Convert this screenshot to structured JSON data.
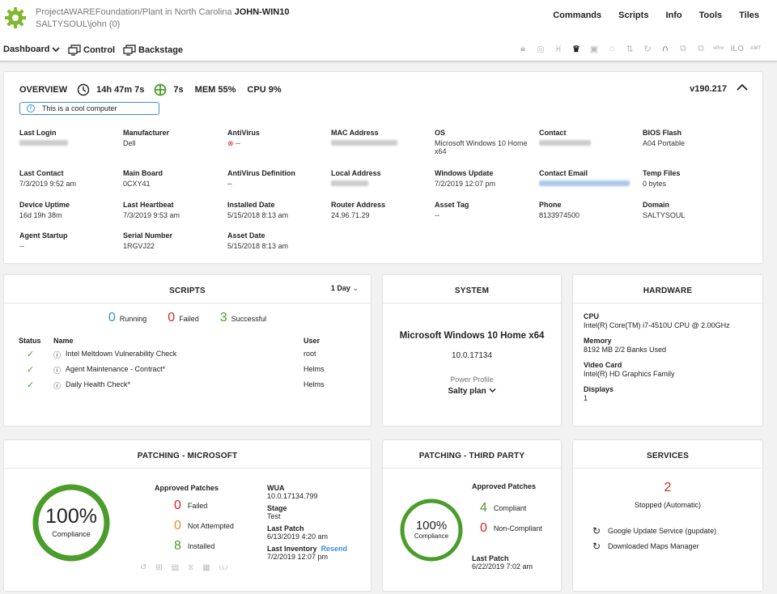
{
  "header": {
    "project": "ProjectAWAREFoundation/Plant in North Carolina",
    "computer": "JOHN-WIN10",
    "user": "SALTYSOUL\\john (0)"
  },
  "menu": [
    "Commands",
    "Scripts",
    "Info",
    "Tools",
    "Tiles"
  ],
  "toolbar": {
    "dashboard": "Dashboard",
    "control": "Control",
    "backstage": "Backstage",
    "vpro": "vPro",
    "ilo": "iLO",
    "amt": "AMT"
  },
  "overview": {
    "title": "OVERVIEW",
    "uptime": "14h 47m 7s",
    "ping": "7s",
    "mem": "MEM 55%",
    "cpu": "CPU 9%",
    "version": "v190.217",
    "note": "This is a cool computer",
    "fields": {
      "last_login": {
        "label": "Last Login"
      },
      "manufacturer": {
        "label": "Manufacturer",
        "value": "Dell"
      },
      "antivirus": {
        "label": "AntiVirus",
        "value": "--"
      },
      "mac": {
        "label": "MAC Address"
      },
      "os": {
        "label": "OS",
        "value": "Microsoft Windows 10 Home x64"
      },
      "contact": {
        "label": "Contact"
      },
      "bios": {
        "label": "BIOS Flash",
        "value": "A04 Portable"
      },
      "last_contact": {
        "label": "Last Contact",
        "value": "7/3/2019 9:52 am"
      },
      "main_board": {
        "label": "Main Board",
        "value": "0CXY41"
      },
      "av_def": {
        "label": "AntiVirus Definition",
        "value": "--"
      },
      "local_addr": {
        "label": "Local Address"
      },
      "win_update": {
        "label": "Windows Update",
        "value": "7/2/2019 12:07 pm"
      },
      "contact_email": {
        "label": "Contact Email"
      },
      "temp_files": {
        "label": "Temp Files",
        "value": "0 bytes"
      },
      "device_uptime": {
        "label": "Device Uptime",
        "value": "16d 19h 38m"
      },
      "last_heartbeat": {
        "label": "Last Heartbeat",
        "value": "7/3/2019 9:53 am"
      },
      "installed_date": {
        "label": "Installed Date",
        "value": "5/15/2018 8:13 am"
      },
      "router_addr": {
        "label": "Router Address",
        "value": "24.96.71.29"
      },
      "asset_tag": {
        "label": "Asset Tag",
        "value": "--"
      },
      "phone": {
        "label": "Phone",
        "value": "8133974500"
      },
      "domain": {
        "label": "Domain",
        "value": "SALTYSOUL"
      },
      "agent_startup": {
        "label": "Agent Startup",
        "value": "--"
      },
      "serial": {
        "label": "Serial Number",
        "value": "1RGVJ22"
      },
      "asset_date": {
        "label": "Asset Date",
        "value": "5/15/2018 8:13 am"
      }
    }
  },
  "scripts": {
    "title": "SCRIPTS",
    "range": "1 Day",
    "running": {
      "count": "0",
      "label": "Running"
    },
    "failed": {
      "count": "0",
      "label": "Failed"
    },
    "successful": {
      "count": "3",
      "label": "Successful"
    },
    "cols": {
      "status": "Status",
      "name": "Name",
      "user": "User"
    },
    "rows": [
      {
        "name": "Intel Meltdown Vulnerability Check",
        "user": "root"
      },
      {
        "name": "Agent Maintenance - Contract*",
        "user": "Helms"
      },
      {
        "name": "Daily Health Check*",
        "user": "Helms"
      }
    ]
  },
  "system": {
    "title": "SYSTEM",
    "os": "Microsoft Windows 10 Home x64",
    "build": "10.0.17134",
    "power_label": "Power Profile",
    "power_value": "Salty plan"
  },
  "hardware": {
    "title": "HARDWARE",
    "items": [
      {
        "label": "CPU",
        "value": "Intel(R) Core(TM) i7-4510U CPU @ 2.00GHz"
      },
      {
        "label": "Memory",
        "value": "8192 MB 2/2 Banks Used"
      },
      {
        "label": "Video Card",
        "value": "Intel(R) HD Graphics Family"
      },
      {
        "label": "Displays",
        "value": "1"
      }
    ]
  },
  "patch_ms": {
    "title": "PATCHING - MICROSOFT",
    "percent": "100%",
    "compliance": "Compliance",
    "compliance_fraction": 1.0,
    "approved": "Approved Patches",
    "failed": {
      "count": "0",
      "label": "Failed"
    },
    "not_attempted": {
      "count": "0",
      "label": "Not Attempted"
    },
    "installed": {
      "count": "8",
      "label": "Installed"
    },
    "wua": {
      "label": "WUA",
      "value": "10.0.17134.799"
    },
    "stage": {
      "label": "Stage",
      "value": "Test"
    },
    "last_patch": {
      "label": "Last Patch",
      "value": "6/13/2019 4:20 am"
    },
    "last_inventory": {
      "label": "Last Inventory",
      "link": "Resend",
      "value": "7/2/2019 12:07 pm"
    }
  },
  "patch_3p": {
    "title": "PATCHING - THIRD PARTY",
    "percent": "100%",
    "compliance": "Compliance",
    "compliance_fraction": 1.0,
    "approved": "Approved Patches",
    "compliant": {
      "count": "4",
      "label": "Compliant"
    },
    "non_compliant": {
      "count": "0",
      "label": "Non-Compliant"
    },
    "last_patch": {
      "label": "Last Patch",
      "value": "6/22/2019 7:02 am"
    }
  },
  "services": {
    "title": "SERVICES",
    "count": "2",
    "label": "Stopped (Automatic)",
    "items": [
      "Google Update Service (gupdate)",
      "Downloaded Maps Manager"
    ]
  },
  "colors": {
    "green": "#4a9d2a",
    "red": "#dd2222",
    "orange": "#e88b2e",
    "blue": "#3b8fd8"
  }
}
